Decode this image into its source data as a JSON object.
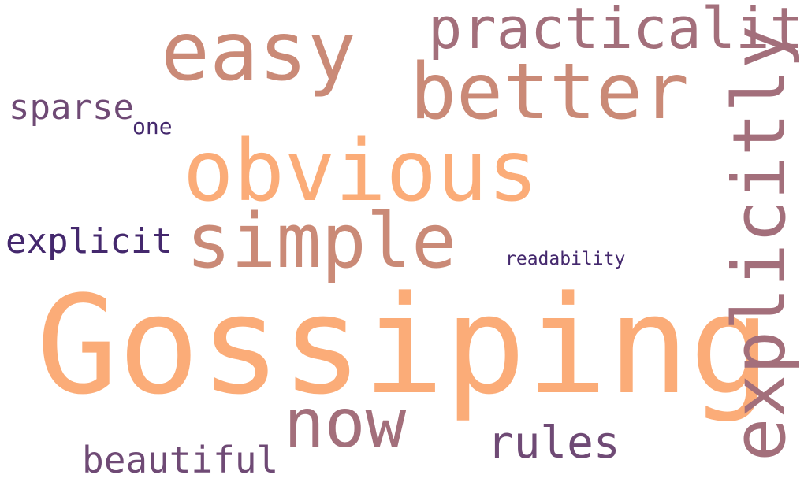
{
  "wordcloud": {
    "words": [
      {
        "key": "gossiping",
        "text": "Gossiping",
        "color": "#FBAC78"
      },
      {
        "key": "obvious",
        "text": "obvious",
        "color": "#FBAC78"
      },
      {
        "key": "easy",
        "text": "easy",
        "color": "#CA8A77"
      },
      {
        "key": "better",
        "text": "better",
        "color": "#CA8A77"
      },
      {
        "key": "simple",
        "text": "simple",
        "color": "#CA8A77"
      },
      {
        "key": "practicality",
        "text": "practicality",
        "color": "#A36F7B"
      },
      {
        "key": "explicitly",
        "text": "explicitly",
        "color": "#A36F7B"
      },
      {
        "key": "now",
        "text": "now",
        "color": "#A36F7B"
      },
      {
        "key": "rules",
        "text": "rules",
        "color": "#6F4A75"
      },
      {
        "key": "beautiful",
        "text": "beautiful",
        "color": "#6F4A75"
      },
      {
        "key": "sparse",
        "text": "sparse",
        "color": "#6F4A75"
      },
      {
        "key": "explicit",
        "text": "explicit",
        "color": "#44286D"
      },
      {
        "key": "one",
        "text": "one",
        "color": "#44286D"
      },
      {
        "key": "readability",
        "text": "readability",
        "color": "#44286D"
      }
    ]
  }
}
